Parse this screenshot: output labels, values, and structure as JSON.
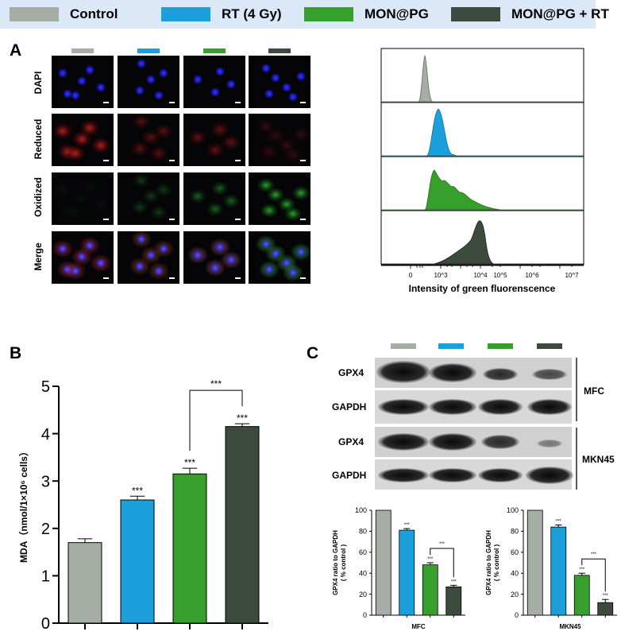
{
  "colors": {
    "control": "#a5ada4",
    "rt": "#1ba0dc",
    "mon": "#37a02c",
    "monrt": "#3d4a3e",
    "legend_bg": "#dbe8f7"
  },
  "legend": [
    {
      "label": "Control",
      "color": "#a5ada4"
    },
    {
      "label": "RT (4 Gy)",
      "color": "#1ba0dc"
    },
    {
      "label": "MON@PG",
      "color": "#37a02c"
    },
    {
      "label": "MON@PG + RT",
      "color": "#3d4a3e"
    }
  ],
  "panel_labels": {
    "a": "A",
    "b": "B",
    "c": "C"
  },
  "microscopy": {
    "rows": [
      "DAPI",
      "Reduced",
      "Oxidized",
      "Merge"
    ]
  },
  "flow": {
    "xlabel": "Intensity of green fluorenscence",
    "ticks": [
      "0",
      "10^3",
      "10^4",
      "10^5",
      "10^6",
      "10^7"
    ]
  },
  "chart_data": [
    {
      "type": "bar",
      "categories": [
        "Control",
        "RT (4 Gy)",
        "MON@PG",
        "MON@PG + RT"
      ],
      "values": [
        1.7,
        2.6,
        3.15,
        4.15
      ],
      "errors": [
        0.08,
        0.08,
        0.12,
        0.06
      ],
      "significance": [
        "",
        "***",
        "***",
        "***"
      ],
      "bracket": {
        "from": 2,
        "to": 3,
        "label": "***"
      },
      "ylabel": "MDA（nmol/1×10⁶ cells）",
      "ylim": [
        0,
        5
      ],
      "yticks": [
        "0",
        "1",
        "2",
        "3",
        "4",
        "5"
      ]
    },
    {
      "type": "bar",
      "categories": [
        "Control",
        "RT (4 Gy)",
        "MON@PG",
        "MON@PG + RT"
      ],
      "values": [
        100,
        81,
        48,
        27
      ],
      "errors": [
        0,
        1.5,
        2,
        1.5
      ],
      "significance": [
        "",
        "***",
        "***",
        "***"
      ],
      "bracket": {
        "from": 2,
        "to": 3,
        "label": "***"
      },
      "xlabel": "MFC",
      "ylabel": "GPX4 ratio to GAPDH",
      "ylabel2": "( % control )",
      "ylim": [
        0,
        100
      ],
      "yticks": [
        "0",
        "20",
        "40",
        "60",
        "80",
        "100"
      ]
    },
    {
      "type": "bar",
      "categories": [
        "Control",
        "RT (4 Gy)",
        "MON@PG",
        "MON@PG + RT"
      ],
      "values": [
        100,
        84,
        38,
        12
      ],
      "errors": [
        0,
        2,
        2,
        3
      ],
      "significance": [
        "",
        "***",
        "***",
        "***"
      ],
      "bracket": {
        "from": 2,
        "to": 3,
        "label": "***"
      },
      "xlabel": "MKN45",
      "ylabel": "GPX4 ratio to GAPDH",
      "ylabel2": "( % control )",
      "ylim": [
        0,
        100
      ],
      "yticks": [
        "0",
        "20",
        "40",
        "60",
        "80",
        "100"
      ]
    }
  ],
  "western": {
    "rows": [
      "GPX4",
      "GAPDH",
      "GPX4",
      "GAPDH"
    ],
    "groups": [
      "MFC",
      "MKN45"
    ]
  }
}
